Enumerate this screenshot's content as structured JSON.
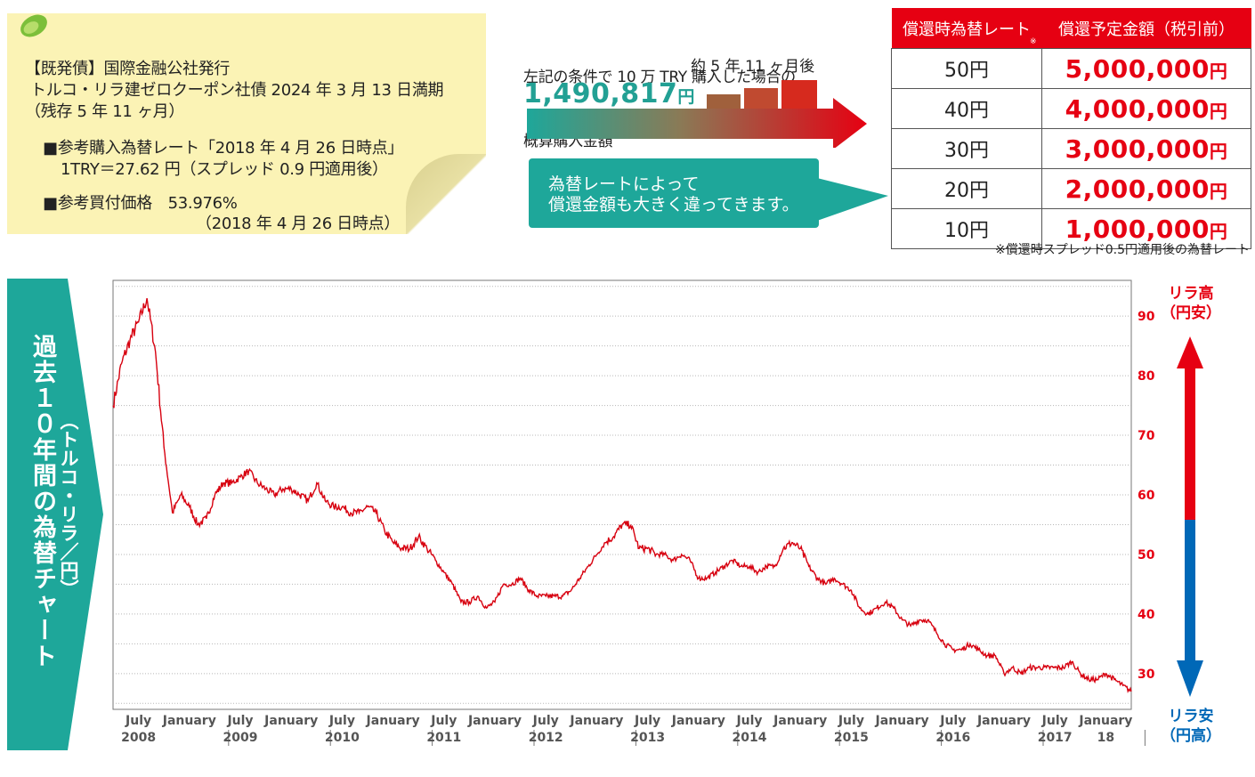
{
  "bond_note": {
    "line1": "【既発債】国際金融公社発行",
    "line2": "トルコ・リラ建ゼロクーポン社債 2024 年 3 月 13 日満期",
    "line3": "（残存 5 年 11 ヶ月）",
    "line4": "■参考購入為替レート「2018 年 4 月 26 日時点」",
    "line5": "1TRY＝27.62 円（スプレッド 0.9 円適用後）",
    "line6": "■参考買付価格　53.976%",
    "line7": "（2018 年 4 月 26 日時点）"
  },
  "purchase": {
    "cond_line1": "左記の条件で 10 万 TRY 購入した場合の",
    "cond_line2": "概算購入金額",
    "amount": "1,490,817",
    "amount_unit": "円",
    "later_label": "約 5 年 11 ヶ月後"
  },
  "callout": {
    "line1": "為替レートによって",
    "line2": "償還金額も大きく違ってきます。"
  },
  "redemption_table": {
    "headers": [
      "償還時為替レート",
      "償還予定金額（税引前）"
    ],
    "header_mark": "※",
    "rows": [
      {
        "rate": "50円",
        "amount": "5,000,000",
        "unit": "円"
      },
      {
        "rate": "40円",
        "amount": "4,000,000",
        "unit": "円"
      },
      {
        "rate": "30円",
        "amount": "3,000,000",
        "unit": "円"
      },
      {
        "rate": "20円",
        "amount": "2,000,000",
        "unit": "円"
      },
      {
        "rate": "10円",
        "amount": "1,000,000",
        "unit": "円"
      }
    ],
    "note": "※償還時スプレッド0.5円適用後の為替レート"
  },
  "side_banner": {
    "title": "過去１０年間の為替チャート",
    "subtitle": "（トルコ・リラ／円）"
  },
  "right_labels": {
    "top_line1": "リラ高",
    "top_line2": "（円安）",
    "bottom_line1": "リラ安",
    "bottom_line2": "（円高）"
  },
  "colors": {
    "accent_red": "#e60012",
    "teal": "#1ea79a",
    "line_red": "#d7000f",
    "blue": "#0068b7",
    "note_yellow": "#fbf3b5"
  },
  "chart_data": {
    "type": "line",
    "title": "",
    "xlabel": "",
    "ylabel": "",
    "x_range": [
      "2008-04",
      "2018-04"
    ],
    "ylim": [
      24,
      96
    ],
    "yticks": [
      30,
      40,
      50,
      60,
      70,
      80,
      90
    ],
    "grid": "horizontal dotted",
    "x_tick_labels": [
      {
        "month": "July",
        "year": "2008"
      },
      {
        "month": "January",
        "year": ""
      },
      {
        "month": "July",
        "year": "2009"
      },
      {
        "month": "January",
        "year": ""
      },
      {
        "month": "July",
        "year": "2010"
      },
      {
        "month": "January",
        "year": ""
      },
      {
        "month": "July",
        "year": "2011"
      },
      {
        "month": "January",
        "year": ""
      },
      {
        "month": "July",
        "year": "2012"
      },
      {
        "month": "January",
        "year": ""
      },
      {
        "month": "July",
        "year": "2013"
      },
      {
        "month": "January",
        "year": ""
      },
      {
        "month": "July",
        "year": "2014"
      },
      {
        "month": "January",
        "year": ""
      },
      {
        "month": "July",
        "year": "2015"
      },
      {
        "month": "January",
        "year": ""
      },
      {
        "month": "July",
        "year": "2016"
      },
      {
        "month": "January",
        "year": ""
      },
      {
        "month": "July",
        "year": "2017"
      },
      {
        "month": "January",
        "year": "18"
      }
    ],
    "series": [
      {
        "name": "",
        "points": [
          [
            "2008-04",
            75
          ],
          [
            "2008-05",
            82
          ],
          [
            "2008-06",
            86
          ],
          [
            "2008-07",
            89
          ],
          [
            "2008-08",
            93
          ],
          [
            "2008-09",
            84
          ],
          [
            "2008-10",
            68
          ],
          [
            "2008-11",
            57
          ],
          [
            "2008-12",
            60
          ],
          [
            "2009-01",
            58
          ],
          [
            "2009-02",
            55
          ],
          [
            "2009-03",
            56
          ],
          [
            "2009-04",
            60
          ],
          [
            "2009-05",
            62
          ],
          [
            "2009-06",
            62
          ],
          [
            "2009-07",
            63
          ],
          [
            "2009-08",
            64
          ],
          [
            "2009-09",
            62
          ],
          [
            "2009-10",
            61
          ],
          [
            "2009-11",
            60
          ],
          [
            "2009-12",
            61
          ],
          [
            "2010-01",
            61
          ],
          [
            "2010-02",
            60
          ],
          [
            "2010-03",
            59
          ],
          [
            "2010-04",
            62
          ],
          [
            "2010-05",
            59
          ],
          [
            "2010-06",
            58
          ],
          [
            "2010-07",
            58
          ],
          [
            "2010-08",
            57
          ],
          [
            "2010-09",
            57
          ],
          [
            "2010-10",
            58
          ],
          [
            "2010-11",
            57
          ],
          [
            "2010-12",
            54
          ],
          [
            "2011-01",
            52
          ],
          [
            "2011-02",
            51
          ],
          [
            "2011-03",
            51
          ],
          [
            "2011-04",
            53
          ],
          [
            "2011-05",
            51
          ],
          [
            "2011-06",
            49
          ],
          [
            "2011-07",
            47
          ],
          [
            "2011-08",
            45
          ],
          [
            "2011-09",
            42
          ],
          [
            "2011-10",
            42
          ],
          [
            "2011-11",
            43
          ],
          [
            "2011-12",
            41
          ],
          [
            "2012-01",
            42
          ],
          [
            "2012-02",
            45
          ],
          [
            "2012-03",
            45
          ],
          [
            "2012-04",
            46
          ],
          [
            "2012-05",
            44
          ],
          [
            "2012-06",
            43
          ],
          [
            "2012-07",
            43
          ],
          [
            "2012-08",
            43
          ],
          [
            "2012-09",
            43
          ],
          [
            "2012-10",
            44
          ],
          [
            "2012-11",
            46
          ],
          [
            "2012-12",
            48
          ],
          [
            "2013-01",
            50
          ],
          [
            "2013-02",
            52
          ],
          [
            "2013-03",
            53
          ],
          [
            "2013-04",
            55
          ],
          [
            "2013-05",
            55
          ],
          [
            "2013-06",
            51
          ],
          [
            "2013-07",
            51
          ],
          [
            "2013-08",
            50
          ],
          [
            "2013-09",
            50
          ],
          [
            "2013-10",
            49
          ],
          [
            "2013-11",
            50
          ],
          [
            "2013-12",
            49
          ],
          [
            "2014-01",
            46
          ],
          [
            "2014-02",
            46
          ],
          [
            "2014-03",
            47
          ],
          [
            "2014-04",
            48
          ],
          [
            "2014-05",
            49
          ],
          [
            "2014-06",
            48
          ],
          [
            "2014-07",
            48
          ],
          [
            "2014-08",
            47
          ],
          [
            "2014-09",
            48
          ],
          [
            "2014-10",
            48
          ],
          [
            "2014-11",
            51
          ],
          [
            "2014-12",
            52
          ],
          [
            "2015-01",
            51
          ],
          [
            "2015-02",
            48
          ],
          [
            "2015-03",
            46
          ],
          [
            "2015-04",
            45
          ],
          [
            "2015-05",
            46
          ],
          [
            "2015-06",
            45
          ],
          [
            "2015-07",
            44
          ],
          [
            "2015-08",
            41
          ],
          [
            "2015-09",
            40
          ],
          [
            "2015-10",
            41
          ],
          [
            "2015-11",
            42
          ],
          [
            "2015-12",
            41
          ],
          [
            "2016-01",
            39
          ],
          [
            "2016-02",
            38
          ],
          [
            "2016-03",
            39
          ],
          [
            "2016-04",
            39
          ],
          [
            "2016-05",
            37
          ],
          [
            "2016-06",
            35
          ],
          [
            "2016-07",
            34
          ],
          [
            "2016-08",
            34
          ],
          [
            "2016-09",
            35
          ],
          [
            "2016-10",
            34
          ],
          [
            "2016-11",
            33
          ],
          [
            "2016-12",
            33
          ],
          [
            "2017-01",
            30
          ],
          [
            "2017-02",
            31
          ],
          [
            "2017-03",
            30
          ],
          [
            "2017-04",
            31
          ],
          [
            "2017-05",
            31
          ],
          [
            "2017-06",
            31
          ],
          [
            "2017-07",
            31
          ],
          [
            "2017-08",
            31
          ],
          [
            "2017-09",
            32
          ],
          [
            "2017-10",
            30
          ],
          [
            "2017-11",
            29
          ],
          [
            "2017-12",
            29
          ],
          [
            "2018-01",
            30
          ],
          [
            "2018-02",
            29
          ],
          [
            "2018-03",
            28
          ],
          [
            "2018-04",
            27
          ]
        ]
      }
    ]
  }
}
